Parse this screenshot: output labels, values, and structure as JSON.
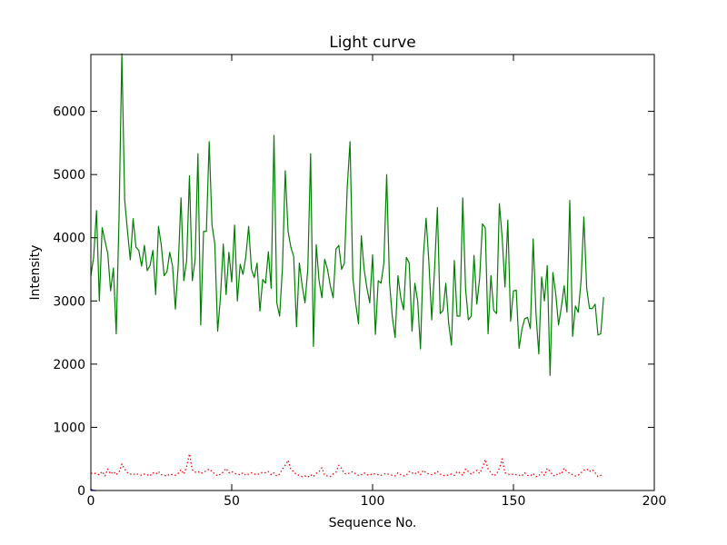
{
  "chart_data": {
    "type": "line",
    "title": "Light curve",
    "xlabel": "Sequence No.",
    "ylabel": "Intensity",
    "xlim": [
      0,
      200
    ],
    "ylim": [
      0,
      6900
    ],
    "xticks": [
      0,
      50,
      100,
      150,
      200
    ],
    "xtick_labels": [
      "0",
      "50",
      "100",
      "150",
      "200"
    ],
    "yticks": [
      0,
      1000,
      2000,
      3000,
      4000,
      5000,
      6000
    ],
    "ytick_labels": [
      "0",
      "1000",
      "2000",
      "3000",
      "4000",
      "5000",
      "6000"
    ],
    "grid": false,
    "legend": "none",
    "series": [
      {
        "color": "#008000",
        "style": "solid",
        "x": [
          0,
          1,
          2,
          3,
          4,
          5,
          6,
          7,
          8,
          9,
          10,
          11,
          12,
          13,
          14,
          15,
          16,
          17,
          18,
          19,
          20,
          21,
          22,
          23,
          24,
          25,
          26,
          27,
          28,
          29,
          30,
          31,
          32,
          33,
          34,
          35,
          36,
          37,
          38,
          39,
          40,
          41,
          42,
          43,
          44,
          45,
          46,
          47,
          48,
          49,
          50,
          51,
          52,
          53,
          54,
          55,
          56,
          57,
          58,
          59,
          60,
          61,
          62,
          63,
          64,
          65,
          66,
          67,
          68,
          69,
          70,
          71,
          72,
          73,
          74,
          75,
          76,
          77,
          78,
          79,
          80,
          81,
          82,
          83,
          84,
          85,
          86,
          87,
          88,
          89,
          90,
          91,
          92,
          93,
          94,
          95,
          96,
          97,
          98,
          99,
          100,
          101,
          102,
          103,
          104,
          105,
          106,
          107,
          108,
          109,
          110,
          111,
          112,
          113,
          114,
          115,
          116,
          117,
          118,
          119,
          120,
          121,
          122,
          123,
          124,
          125,
          126,
          127,
          128,
          129,
          130,
          131,
          132,
          133,
          134,
          135,
          136,
          137,
          138,
          139,
          140,
          141,
          142,
          143,
          144,
          145,
          146,
          147,
          148,
          149,
          150,
          151,
          152,
          153,
          154,
          155,
          156,
          157,
          158,
          159,
          160,
          161,
          162,
          163,
          164,
          165,
          166,
          167,
          168,
          169,
          170,
          171,
          172,
          173,
          174,
          175,
          176,
          177,
          178,
          179,
          180,
          181,
          182
        ],
        "y": [
          3400,
          3700,
          4430,
          3000,
          4160,
          3950,
          3750,
          3160,
          3520,
          2480,
          4330,
          6910,
          4600,
          4100,
          3650,
          4300,
          3850,
          3800,
          3550,
          3880,
          3480,
          3560,
          3800,
          3100,
          4180,
          3880,
          3400,
          3460,
          3770,
          3550,
          2870,
          3560,
          4630,
          3320,
          3640,
          4980,
          3320,
          3650,
          5330,
          2620,
          4100,
          4100,
          5520,
          4200,
          3900,
          2520,
          3060,
          3900,
          3100,
          3770,
          3300,
          4200,
          3000,
          3580,
          3420,
          3700,
          4180,
          3500,
          3370,
          3600,
          2840,
          3340,
          3280,
          3780,
          3200,
          5620,
          2970,
          2760,
          3520,
          5060,
          4100,
          3850,
          3700,
          2590,
          3600,
          3240,
          2970,
          3500,
          5330,
          2280,
          3890,
          3320,
          3050,
          3660,
          3500,
          3240,
          3050,
          3820,
          3880,
          3500,
          3600,
          4800,
          5520,
          3360,
          2960,
          2640,
          4030,
          3500,
          3200,
          2970,
          3730,
          2470,
          3320,
          3280,
          3600,
          5000,
          3300,
          2750,
          2420,
          3400,
          3050,
          2860,
          3690,
          3600,
          2520,
          3280,
          3000,
          2240,
          3700,
          4310,
          3600,
          2700,
          3500,
          4480,
          2800,
          2850,
          3280,
          2650,
          2300,
          3640,
          2760,
          2760,
          4630,
          3200,
          2700,
          2760,
          3720,
          2950,
          3360,
          4220,
          4160,
          2480,
          3400,
          2850,
          2800,
          4540,
          4000,
          3220,
          4280,
          2680,
          3160,
          3170,
          2250,
          2550,
          2720,
          2740,
          2560,
          3980,
          2800,
          2160,
          3380,
          3000,
          3560,
          1820,
          3450,
          3120,
          2620,
          2900,
          3240,
          2820,
          4590,
          2440,
          2920,
          2820,
          3320,
          4330,
          3200,
          2880,
          2880,
          2950,
          2460,
          2480,
          3060
        ]
      },
      {
        "color": "#ff0000",
        "style": "dotted",
        "x": [
          0,
          1,
          2,
          3,
          4,
          5,
          6,
          7,
          8,
          9,
          10,
          11,
          12,
          13,
          14,
          15,
          16,
          17,
          18,
          19,
          20,
          21,
          22,
          23,
          24,
          25,
          26,
          27,
          28,
          29,
          30,
          31,
          32,
          33,
          34,
          35,
          36,
          37,
          38,
          39,
          40,
          41,
          42,
          43,
          44,
          45,
          46,
          47,
          48,
          49,
          50,
          51,
          52,
          53,
          54,
          55,
          56,
          57,
          58,
          59,
          60,
          61,
          62,
          63,
          64,
          65,
          66,
          67,
          68,
          69,
          70,
          71,
          72,
          73,
          74,
          75,
          76,
          77,
          78,
          79,
          80,
          81,
          82,
          83,
          84,
          85,
          86,
          87,
          88,
          89,
          90,
          91,
          92,
          93,
          94,
          95,
          96,
          97,
          98,
          99,
          100,
          101,
          102,
          103,
          104,
          105,
          106,
          107,
          108,
          109,
          110,
          111,
          112,
          113,
          114,
          115,
          116,
          117,
          118,
          119,
          120,
          121,
          122,
          123,
          124,
          125,
          126,
          127,
          128,
          129,
          130,
          131,
          132,
          133,
          134,
          135,
          136,
          137,
          138,
          139,
          140,
          141,
          142,
          143,
          144,
          145,
          146,
          147,
          148,
          149,
          150,
          151,
          152,
          153,
          154,
          155,
          156,
          157,
          158,
          159,
          160,
          161,
          162,
          163,
          164,
          165,
          166,
          167,
          168,
          169,
          170,
          171,
          172,
          173,
          174,
          175,
          176,
          177,
          178,
          179,
          180,
          181,
          182
        ],
        "y": [
          270,
          280,
          260,
          250,
          300,
          230,
          340,
          260,
          300,
          250,
          290,
          420,
          340,
          280,
          260,
          250,
          270,
          250,
          240,
          260,
          250,
          230,
          280,
          260,
          300,
          250,
          240,
          230,
          260,
          250,
          240,
          270,
          330,
          260,
          380,
          580,
          330,
          290,
          300,
          270,
          290,
          310,
          340,
          300,
          260,
          230,
          260,
          290,
          350,
          280,
          300,
          270,
          260,
          250,
          280,
          240,
          260,
          280,
          260,
          250,
          270,
          290,
          280,
          300,
          250,
          280,
          230,
          260,
          340,
          400,
          480,
          330,
          300,
          250,
          240,
          220,
          230,
          210,
          250,
          220,
          270,
          300,
          360,
          240,
          230,
          220,
          260,
          290,
          400,
          350,
          270,
          260,
          280,
          300,
          260,
          240,
          250,
          280,
          250,
          240,
          270,
          260,
          250,
          240,
          260,
          270,
          250,
          240,
          230,
          280,
          250,
          230,
          240,
          300,
          280,
          260,
          300,
          250,
          320,
          280,
          260,
          250,
          270,
          300,
          260,
          240,
          230,
          250,
          260,
          240,
          300,
          280,
          240,
          340,
          300,
          260,
          290,
          320,
          270,
          360,
          490,
          340,
          280,
          230,
          260,
          350,
          500,
          280,
          260,
          250,
          260,
          250,
          240,
          230,
          280,
          240,
          230,
          270,
          220,
          230,
          290,
          240,
          350,
          300,
          240,
          230,
          280,
          260,
          350,
          300,
          270,
          250,
          230,
          240,
          280,
          320,
          340,
          300,
          330,
          280,
          220,
          240,
          250
        ]
      },
      {
        "color": "#0000ff",
        "style": "solid",
        "x": [
          0,
          1,
          2
        ],
        "y": [
          20,
          0,
          0
        ]
      }
    ]
  }
}
